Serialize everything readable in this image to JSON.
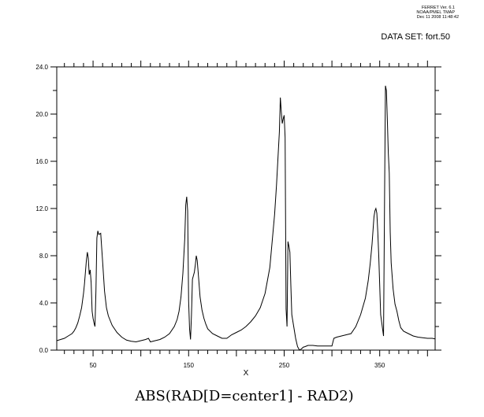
{
  "header": {
    "program": "FERRET Ver. 6.1",
    "institution": "NOAA/PMEL TMAP",
    "timestamp": "Dec 11 2008 11:48:42",
    "dataset": "DATA SET: fort.50"
  },
  "chart_data": {
    "type": "line",
    "title": "ABS(RAD[D=center1] - RAD2)",
    "xlabel": "X",
    "ylabel": "",
    "xlim": [
      12,
      408
    ],
    "ylim": [
      0,
      24
    ],
    "xticks_labeled": [
      50,
      150,
      250,
      350
    ],
    "xticks_labels": [
      "50",
      "150",
      "250",
      "350"
    ],
    "yticks": [
      0,
      4,
      8,
      12,
      16,
      20,
      24
    ],
    "yticks_labels": [
      "0.0",
      "4.0",
      "8.0",
      "12.0",
      "16.0",
      "20.0",
      "24.0"
    ],
    "grid": false,
    "series": [
      {
        "x": [
          12,
          16,
          20,
          24,
          28,
          30,
          32,
          34,
          36,
          38,
          40,
          41,
          42,
          43,
          44,
          45,
          46,
          47,
          48,
          49,
          50,
          51,
          52,
          53,
          54,
          55,
          56,
          58,
          60,
          62,
          64,
          66,
          70,
          75,
          80,
          85,
          90,
          95,
          100,
          105,
          108,
          110,
          115,
          120,
          125,
          130,
          135,
          138,
          140,
          142,
          144,
          146,
          147,
          148,
          149,
          150,
          151,
          152,
          153,
          154,
          155,
          156,
          157,
          158,
          159,
          160,
          162,
          164,
          166,
          168,
          170,
          175,
          180,
          185,
          190,
          195,
          200,
          205,
          210,
          215,
          220,
          225,
          230,
          235,
          240,
          242,
          244,
          245,
          246,
          247,
          248,
          249,
          250,
          251,
          252,
          253,
          254,
          255,
          256,
          257,
          258,
          260,
          262,
          264,
          266,
          268,
          270,
          272,
          275,
          280,
          285,
          290,
          295,
          298,
          300,
          302,
          305,
          310,
          315,
          320,
          325,
          330,
          335,
          338,
          340,
          342,
          344,
          345,
          346,
          347,
          348,
          349,
          350,
          351,
          352,
          353,
          354,
          355,
          356,
          357,
          358,
          359,
          360,
          361,
          362,
          364,
          366,
          368,
          370,
          372,
          375,
          380,
          385,
          390,
          395,
          400,
          405,
          408
        ],
        "y": [
          0.8,
          0.9,
          1.0,
          1.2,
          1.4,
          1.6,
          1.9,
          2.3,
          2.9,
          3.6,
          4.8,
          5.6,
          6.6,
          7.6,
          8.3,
          7.8,
          6.4,
          6.8,
          5.7,
          3.3,
          2.7,
          2.3,
          2.0,
          5.0,
          9.5,
          10.1,
          9.8,
          9.9,
          7.5,
          5.0,
          3.6,
          2.9,
          2.1,
          1.5,
          1.1,
          0.85,
          0.75,
          0.7,
          0.8,
          0.9,
          1.0,
          0.7,
          0.8,
          0.9,
          1.1,
          1.4,
          2.0,
          2.6,
          3.3,
          4.5,
          6.5,
          9.5,
          12.3,
          13.0,
          11.8,
          4.2,
          1.8,
          0.9,
          3.0,
          6.0,
          6.3,
          6.6,
          7.2,
          8.0,
          7.6,
          6.6,
          4.5,
          3.4,
          2.7,
          2.2,
          1.8,
          1.4,
          1.2,
          1.0,
          1.0,
          1.3,
          1.5,
          1.7,
          2.0,
          2.4,
          2.9,
          3.6,
          4.8,
          7.0,
          11.5,
          14.0,
          17.0,
          18.5,
          21.4,
          20.2,
          19.2,
          19.6,
          19.9,
          18.0,
          3.5,
          2.0,
          9.2,
          8.8,
          8.3,
          5.5,
          3.0,
          2.0,
          1.0,
          0.3,
          0.0,
          0.1,
          0.25,
          0.3,
          0.4,
          0.4,
          0.35,
          0.35,
          0.35,
          0.35,
          0.35,
          1.0,
          1.1,
          1.2,
          1.3,
          1.4,
          2.0,
          3.0,
          4.4,
          5.9,
          7.3,
          9.0,
          11.3,
          11.8,
          12.0,
          11.6,
          10.0,
          8.0,
          5.5,
          3.0,
          2.4,
          1.8,
          1.2,
          12.0,
          22.4,
          22.0,
          19.5,
          16.7,
          15.0,
          10.0,
          7.4,
          5.2,
          3.9,
          3.3,
          2.5,
          1.9,
          1.6,
          1.4,
          1.2,
          1.1,
          1.05,
          1.0,
          1.0,
          0.95
        ]
      }
    ]
  }
}
